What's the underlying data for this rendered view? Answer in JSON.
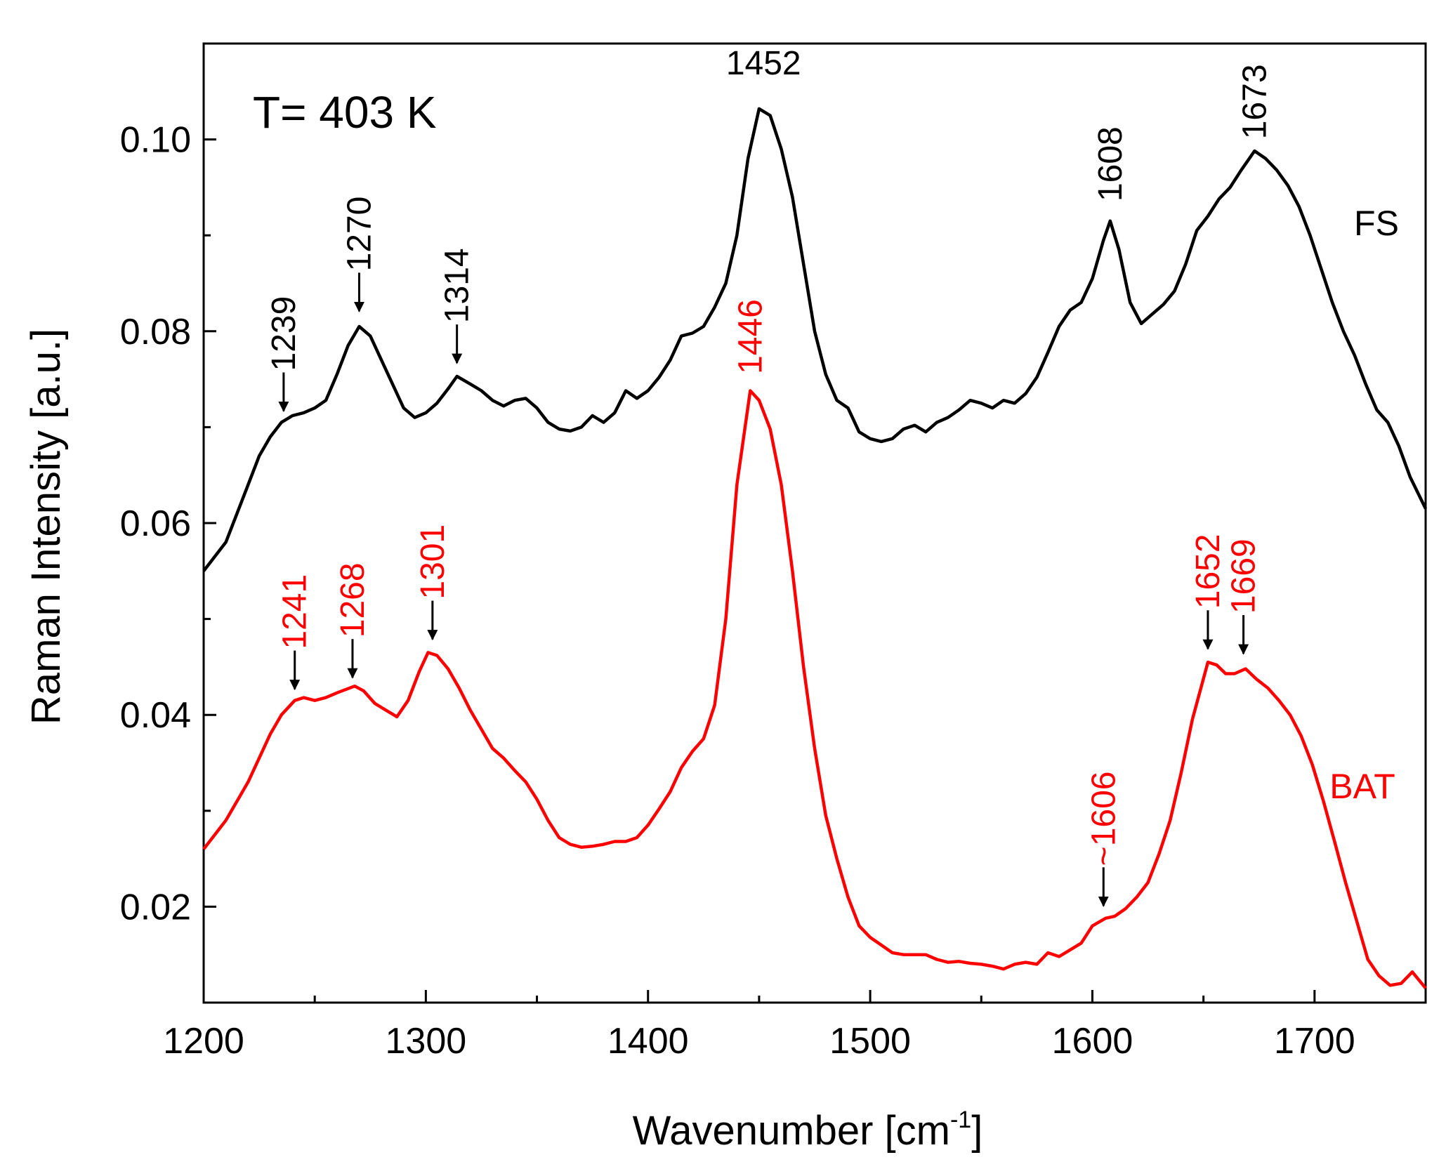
{
  "chart_data": {
    "type": "line",
    "title": "",
    "annotation_text": "T= 403 K",
    "xlabel": "Wavenumber [cm",
    "xlabel_sup": "-1",
    "xlabel_end": "]",
    "ylabel": "Raman Intensity [a.u.]",
    "xlim": [
      1200,
      1750
    ],
    "ylim": [
      0.01,
      0.11
    ],
    "xticks": [
      1200,
      1300,
      1400,
      1500,
      1600,
      1700
    ],
    "xtick_labels": [
      "1200",
      "1300",
      "1400",
      "1500",
      "1600",
      "1700"
    ],
    "yticks": [
      0.02,
      0.04,
      0.06,
      0.08,
      0.1
    ],
    "ytick_labels": [
      "0.02",
      "0.04",
      "0.06",
      "0.08",
      "0.10"
    ],
    "series": [
      {
        "name": "FS",
        "color": "#000000",
        "points": [
          [
            1200,
            0.055
          ],
          [
            1205,
            0.0565
          ],
          [
            1210,
            0.058
          ],
          [
            1215,
            0.061
          ],
          [
            1220,
            0.064
          ],
          [
            1225,
            0.067
          ],
          [
            1230,
            0.069
          ],
          [
            1235,
            0.0705
          ],
          [
            1240,
            0.0712
          ],
          [
            1245,
            0.0715
          ],
          [
            1250,
            0.072
          ],
          [
            1255,
            0.0728
          ],
          [
            1260,
            0.0755
          ],
          [
            1265,
            0.0785
          ],
          [
            1270,
            0.0805
          ],
          [
            1275,
            0.0795
          ],
          [
            1280,
            0.077
          ],
          [
            1285,
            0.0745
          ],
          [
            1290,
            0.072
          ],
          [
            1295,
            0.071
          ],
          [
            1300,
            0.0715
          ],
          [
            1305,
            0.0725
          ],
          [
            1310,
            0.074
          ],
          [
            1314,
            0.0753
          ],
          [
            1320,
            0.0745
          ],
          [
            1325,
            0.0738
          ],
          [
            1330,
            0.0728
          ],
          [
            1335,
            0.0722
          ],
          [
            1340,
            0.0728
          ],
          [
            1345,
            0.073
          ],
          [
            1350,
            0.072
          ],
          [
            1355,
            0.0705
          ],
          [
            1360,
            0.0698
          ],
          [
            1365,
            0.0696
          ],
          [
            1370,
            0.07
          ],
          [
            1375,
            0.0712
          ],
          [
            1380,
            0.0705
          ],
          [
            1385,
            0.0715
          ],
          [
            1390,
            0.0738
          ],
          [
            1395,
            0.073
          ],
          [
            1400,
            0.0738
          ],
          [
            1405,
            0.0752
          ],
          [
            1410,
            0.077
          ],
          [
            1415,
            0.0795
          ],
          [
            1420,
            0.0798
          ],
          [
            1425,
            0.0805
          ],
          [
            1430,
            0.0825
          ],
          [
            1435,
            0.085
          ],
          [
            1440,
            0.09
          ],
          [
            1445,
            0.098
          ],
          [
            1450,
            0.1032
          ],
          [
            1455,
            0.1025
          ],
          [
            1460,
            0.099
          ],
          [
            1465,
            0.094
          ],
          [
            1470,
            0.087
          ],
          [
            1475,
            0.08
          ],
          [
            1480,
            0.0755
          ],
          [
            1485,
            0.0728
          ],
          [
            1490,
            0.072
          ],
          [
            1495,
            0.0695
          ],
          [
            1500,
            0.0688
          ],
          [
            1505,
            0.0685
          ],
          [
            1510,
            0.0688
          ],
          [
            1515,
            0.0698
          ],
          [
            1520,
            0.0702
          ],
          [
            1525,
            0.0695
          ],
          [
            1530,
            0.0705
          ],
          [
            1535,
            0.071
          ],
          [
            1540,
            0.0718
          ],
          [
            1545,
            0.0728
          ],
          [
            1550,
            0.0725
          ],
          [
            1555,
            0.072
          ],
          [
            1560,
            0.0728
          ],
          [
            1565,
            0.0725
          ],
          [
            1570,
            0.0735
          ],
          [
            1575,
            0.0752
          ],
          [
            1580,
            0.0778
          ],
          [
            1585,
            0.0805
          ],
          [
            1590,
            0.0822
          ],
          [
            1595,
            0.083
          ],
          [
            1600,
            0.0855
          ],
          [
            1605,
            0.0895
          ],
          [
            1608,
            0.0915
          ],
          [
            1612,
            0.0885
          ],
          [
            1617,
            0.083
          ],
          [
            1622,
            0.0808
          ],
          [
            1627,
            0.0818
          ],
          [
            1632,
            0.0828
          ],
          [
            1637,
            0.0842
          ],
          [
            1642,
            0.087
          ],
          [
            1647,
            0.0905
          ],
          [
            1652,
            0.092
          ],
          [
            1657,
            0.0938
          ],
          [
            1662,
            0.095
          ],
          [
            1667,
            0.0968
          ],
          [
            1673,
            0.0988
          ],
          [
            1678,
            0.098
          ],
          [
            1683,
            0.0968
          ],
          [
            1688,
            0.0952
          ],
          [
            1693,
            0.093
          ],
          [
            1698,
            0.09
          ],
          [
            1703,
            0.0865
          ],
          [
            1708,
            0.083
          ],
          [
            1713,
            0.08
          ],
          [
            1718,
            0.0775
          ],
          [
            1723,
            0.0745
          ],
          [
            1728,
            0.0718
          ],
          [
            1733,
            0.0705
          ],
          [
            1738,
            0.068
          ],
          [
            1743,
            0.0648
          ],
          [
            1750,
            0.0615
          ]
        ]
      },
      {
        "name": "BAT",
        "color": "#ff0000",
        "points": [
          [
            1200,
            0.026
          ],
          [
            1205,
            0.0275
          ],
          [
            1210,
            0.029
          ],
          [
            1215,
            0.031
          ],
          [
            1220,
            0.033
          ],
          [
            1225,
            0.0355
          ],
          [
            1230,
            0.038
          ],
          [
            1235,
            0.04
          ],
          [
            1241,
            0.0415
          ],
          [
            1245,
            0.0418
          ],
          [
            1250,
            0.0415
          ],
          [
            1255,
            0.0418
          ],
          [
            1260,
            0.0423
          ],
          [
            1268,
            0.043
          ],
          [
            1272,
            0.0425
          ],
          [
            1277,
            0.0412
          ],
          [
            1282,
            0.0405
          ],
          [
            1287,
            0.0398
          ],
          [
            1292,
            0.0415
          ],
          [
            1297,
            0.0445
          ],
          [
            1301,
            0.0465
          ],
          [
            1305,
            0.0462
          ],
          [
            1310,
            0.0448
          ],
          [
            1315,
            0.0428
          ],
          [
            1320,
            0.0405
          ],
          [
            1325,
            0.0385
          ],
          [
            1330,
            0.0365
          ],
          [
            1335,
            0.0355
          ],
          [
            1340,
            0.0342
          ],
          [
            1345,
            0.033
          ],
          [
            1350,
            0.0312
          ],
          [
            1355,
            0.029
          ],
          [
            1360,
            0.0272
          ],
          [
            1365,
            0.0265
          ],
          [
            1370,
            0.0262
          ],
          [
            1375,
            0.0263
          ],
          [
            1380,
            0.0265
          ],
          [
            1385,
            0.0268
          ],
          [
            1390,
            0.0268
          ],
          [
            1395,
            0.0272
          ],
          [
            1400,
            0.0285
          ],
          [
            1405,
            0.0302
          ],
          [
            1410,
            0.032
          ],
          [
            1415,
            0.0345
          ],
          [
            1420,
            0.0362
          ],
          [
            1425,
            0.0375
          ],
          [
            1430,
            0.041
          ],
          [
            1435,
            0.05
          ],
          [
            1440,
            0.064
          ],
          [
            1446,
            0.0738
          ],
          [
            1450,
            0.0728
          ],
          [
            1455,
            0.0698
          ],
          [
            1460,
            0.064
          ],
          [
            1465,
            0.055
          ],
          [
            1470,
            0.045
          ],
          [
            1475,
            0.0365
          ],
          [
            1480,
            0.0295
          ],
          [
            1485,
            0.025
          ],
          [
            1490,
            0.021
          ],
          [
            1495,
            0.018
          ],
          [
            1500,
            0.0168
          ],
          [
            1505,
            0.016
          ],
          [
            1510,
            0.0152
          ],
          [
            1515,
            0.015
          ],
          [
            1520,
            0.015
          ],
          [
            1525,
            0.015
          ],
          [
            1530,
            0.0145
          ],
          [
            1535,
            0.0142
          ],
          [
            1540,
            0.0143
          ],
          [
            1545,
            0.0141
          ],
          [
            1550,
            0.014
          ],
          [
            1555,
            0.0138
          ],
          [
            1560,
            0.0135
          ],
          [
            1565,
            0.014
          ],
          [
            1570,
            0.0142
          ],
          [
            1575,
            0.014
          ],
          [
            1580,
            0.0152
          ],
          [
            1585,
            0.0148
          ],
          [
            1590,
            0.0155
          ],
          [
            1595,
            0.0162
          ],
          [
            1600,
            0.018
          ],
          [
            1606,
            0.0188
          ],
          [
            1610,
            0.019
          ],
          [
            1615,
            0.0198
          ],
          [
            1620,
            0.021
          ],
          [
            1625,
            0.0225
          ],
          [
            1630,
            0.0255
          ],
          [
            1635,
            0.029
          ],
          [
            1640,
            0.034
          ],
          [
            1645,
            0.0395
          ],
          [
            1652,
            0.0455
          ],
          [
            1656,
            0.0452
          ],
          [
            1660,
            0.0443
          ],
          [
            1664,
            0.0443
          ],
          [
            1669,
            0.0448
          ],
          [
            1674,
            0.0437
          ],
          [
            1679,
            0.0428
          ],
          [
            1684,
            0.0415
          ],
          [
            1689,
            0.04
          ],
          [
            1694,
            0.0378
          ],
          [
            1699,
            0.0348
          ],
          [
            1704,
            0.031
          ],
          [
            1709,
            0.0268
          ],
          [
            1714,
            0.0225
          ],
          [
            1719,
            0.0185
          ],
          [
            1724,
            0.0145
          ],
          [
            1729,
            0.0128
          ],
          [
            1734,
            0.0118
          ],
          [
            1739,
            0.012
          ],
          [
            1744,
            0.0132
          ],
          [
            1750,
            0.0115
          ]
        ]
      }
    ],
    "peak_labels": [
      {
        "text": "1239",
        "series": "FS",
        "x": 1236,
        "y": 0.0708,
        "arrow": true
      },
      {
        "text": "1270",
        "series": "FS",
        "x": 1270,
        "y": 0.0812,
        "arrow": true
      },
      {
        "text": "1314",
        "series": "FS",
        "x": 1314,
        "y": 0.0758,
        "arrow": true
      },
      {
        "text": "1452",
        "series": "FS",
        "x": 1452,
        "y": 0.1035,
        "arrow": false,
        "horizontal": true
      },
      {
        "text": "1608",
        "series": "FS",
        "x": 1608,
        "y": 0.0925,
        "arrow": false
      },
      {
        "text": "1673",
        "series": "FS",
        "x": 1673,
        "y": 0.099,
        "arrow": false
      },
      {
        "text": "1241",
        "series": "BAT",
        "x": 1241,
        "y": 0.0418,
        "arrow": true
      },
      {
        "text": "1268",
        "series": "BAT",
        "x": 1267,
        "y": 0.043,
        "arrow": true
      },
      {
        "text": "1301",
        "series": "BAT",
        "x": 1303,
        "y": 0.047,
        "arrow": true
      },
      {
        "text": "1446",
        "series": "BAT",
        "x": 1446,
        "y": 0.0745,
        "arrow": false
      },
      {
        "text": "~1606",
        "series": "BAT",
        "x": 1605,
        "y": 0.0192,
        "arrow": true
      },
      {
        "text": "1652",
        "series": "BAT",
        "x": 1652,
        "y": 0.046,
        "arrow": true
      },
      {
        "text": "1669",
        "series": "BAT",
        "x": 1668,
        "y": 0.0455,
        "arrow": true
      }
    ],
    "series_labels": [
      {
        "text": "FS",
        "color": "#000000"
      },
      {
        "text": "BAT",
        "color": "#ff0000"
      }
    ]
  }
}
